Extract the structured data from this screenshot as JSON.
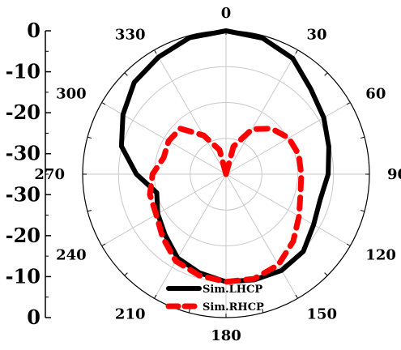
{
  "chart_data": {
    "type": "polar-line",
    "title": "",
    "angle_unit": "deg",
    "angle_ticks": [
      "0",
      "30",
      "60",
      "90",
      "120",
      "150",
      "180",
      "210",
      "240",
      "270",
      "300",
      "330"
    ],
    "radial_axis": {
      "range_db": [
        -40,
        0
      ],
      "ticks_left": [
        "0",
        "-10",
        "-20",
        "-30",
        "-30",
        "-20",
        "-10",
        "0"
      ]
    },
    "grid": true,
    "legend_position": "bottom-center",
    "series": [
      {
        "name": "Sim.LHCP",
        "color": "#000000",
        "style": "solid",
        "points": [
          {
            "angle": 0,
            "value": 0
          },
          {
            "angle": 15,
            "value": -0.7
          },
          {
            "angle": 30,
            "value": -2.7
          },
          {
            "angle": 45,
            "value": -6.5
          },
          {
            "angle": 60,
            "value": -8.5
          },
          {
            "angle": 75,
            "value": -10.3
          },
          {
            "angle": 90,
            "value": -11.5
          },
          {
            "angle": 105,
            "value": -12.8
          },
          {
            "angle": 120,
            "value": -11.8
          },
          {
            "angle": 135,
            "value": -9.5
          },
          {
            "angle": 150,
            "value": -9
          },
          {
            "angle": 165,
            "value": -9.5
          },
          {
            "angle": 180,
            "value": -10
          },
          {
            "angle": 195,
            "value": -11.5
          },
          {
            "angle": 210,
            "value": -13
          },
          {
            "angle": 225,
            "value": -16
          },
          {
            "angle": 240,
            "value": -18
          },
          {
            "angle": 255,
            "value": -20
          },
          {
            "angle": 270,
            "value": -15
          },
          {
            "angle": 285,
            "value": -9.8
          },
          {
            "angle": 300,
            "value": -6.8
          },
          {
            "angle": 315,
            "value": -3.8
          },
          {
            "angle": 330,
            "value": -2.3
          },
          {
            "angle": 345,
            "value": -0.6
          },
          {
            "angle": 360,
            "value": 0
          }
        ]
      },
      {
        "name": "Sim.RHCP",
        "color": "#ff0000",
        "style": "dashed",
        "points": [
          {
            "angle": 0,
            "value": -40
          },
          {
            "angle": 15,
            "value": -32
          },
          {
            "angle": 30,
            "value": -25.5
          },
          {
            "angle": 45,
            "value": -22
          },
          {
            "angle": 60,
            "value": -19.8
          },
          {
            "angle": 75,
            "value": -19
          },
          {
            "angle": 90,
            "value": -19
          },
          {
            "angle": 105,
            "value": -18.5
          },
          {
            "angle": 120,
            "value": -16.5
          },
          {
            "angle": 135,
            "value": -13.5
          },
          {
            "angle": 150,
            "value": -10.8
          },
          {
            "angle": 165,
            "value": -9.8
          },
          {
            "angle": 180,
            "value": -10
          },
          {
            "angle": 195,
            "value": -10.8
          },
          {
            "angle": 210,
            "value": -12
          },
          {
            "angle": 225,
            "value": -15
          },
          {
            "angle": 240,
            "value": -17.5
          },
          {
            "angle": 255,
            "value": -18
          },
          {
            "angle": 270,
            "value": -19.5
          },
          {
            "angle": 285,
            "value": -22
          },
          {
            "angle": 300,
            "value": -21.5
          },
          {
            "angle": 315,
            "value": -22
          },
          {
            "angle": 330,
            "value": -27.5
          },
          {
            "angle": 345,
            "value": -33
          },
          {
            "angle": 360,
            "value": -40
          }
        ]
      }
    ]
  }
}
